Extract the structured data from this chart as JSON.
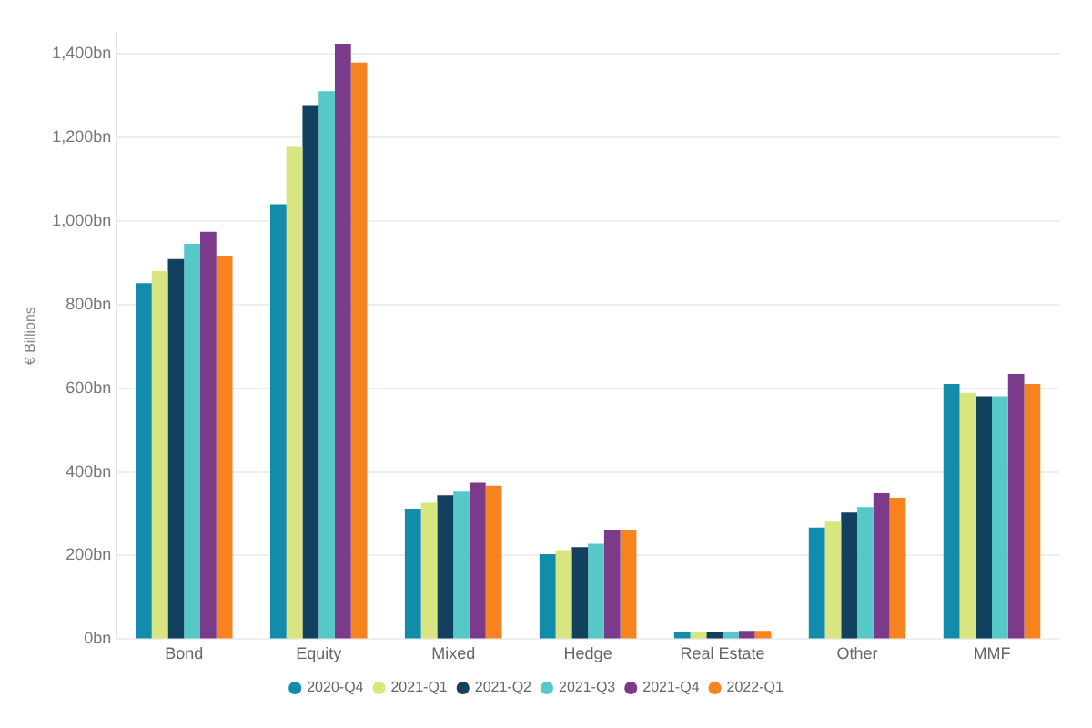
{
  "chart_data": {
    "type": "bar",
    "ylabel": "€ Billions",
    "categories": [
      "Bond",
      "Equity",
      "Mixed",
      "Hedge",
      "Real Estate",
      "Other",
      "MMF"
    ],
    "series": [
      {
        "name": "2020-Q4",
        "color": "#118dab",
        "values": [
          851,
          1040,
          312,
          203,
          18,
          267,
          610
        ]
      },
      {
        "name": "2021-Q1",
        "color": "#d9e57e",
        "values": [
          880,
          1179,
          326,
          213,
          18,
          281,
          589
        ]
      },
      {
        "name": "2021-Q2",
        "color": "#12405f",
        "values": [
          909,
          1277,
          344,
          220,
          18,
          303,
          581
        ]
      },
      {
        "name": "2021-Q3",
        "color": "#56c8c8",
        "values": [
          945,
          1310,
          353,
          228,
          18,
          316,
          581
        ]
      },
      {
        "name": "2021-Q4",
        "color": "#7b3b8a",
        "values": [
          974,
          1424,
          374,
          262,
          20,
          349,
          634
        ]
      },
      {
        "name": "2022-Q1",
        "color": "#f7831f",
        "values": [
          917,
          1379,
          367,
          262,
          20,
          338,
          610
        ]
      }
    ],
    "ylim": [
      0,
      1450
    ],
    "yticks": [
      {
        "value": 0,
        "label": "0bn"
      },
      {
        "value": 200,
        "label": "200bn"
      },
      {
        "value": 400,
        "label": "400bn"
      },
      {
        "value": 600,
        "label": "600bn"
      },
      {
        "value": 800,
        "label": "800bn"
      },
      {
        "value": 1000,
        "label": "1,000bn"
      },
      {
        "value": 1200,
        "label": "1,200bn"
      },
      {
        "value": 1400,
        "label": "1,400bn"
      }
    ],
    "grid": "y",
    "legend": "bottom",
    "marker": "circle"
  }
}
